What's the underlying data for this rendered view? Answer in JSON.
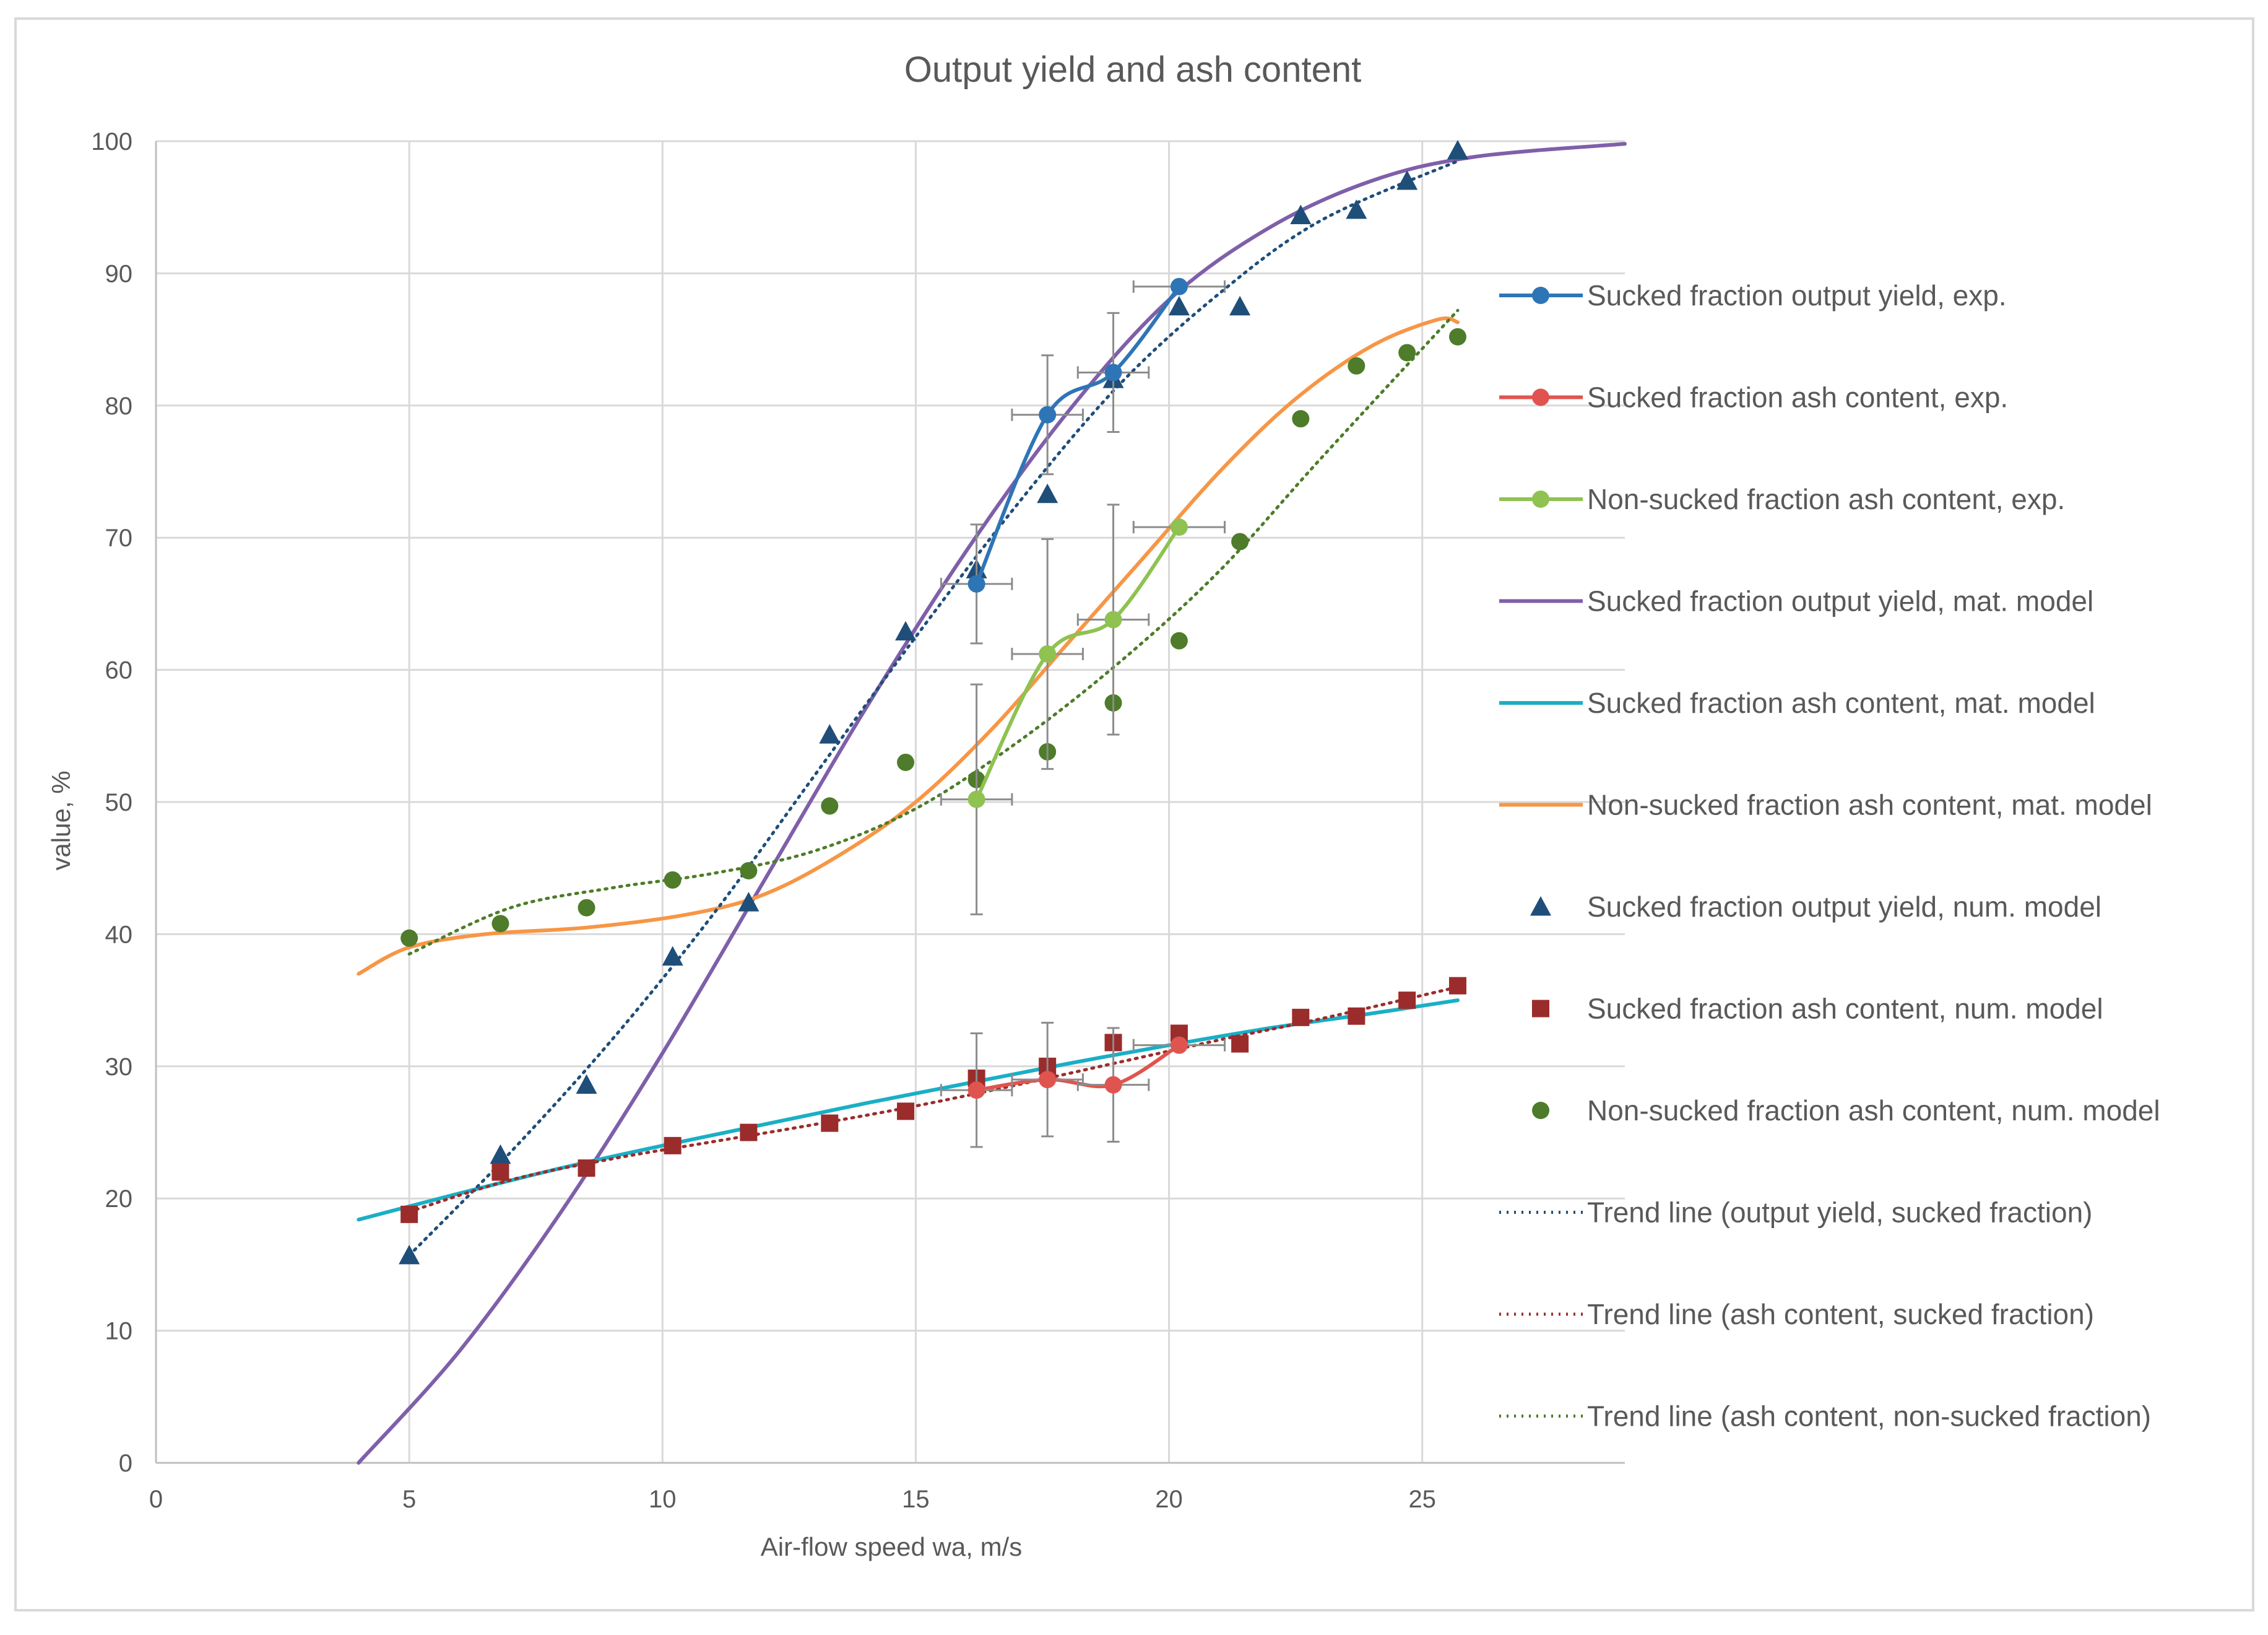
{
  "chart_data": {
    "type": "scatter",
    "title": "Output yield and ash content",
    "xlabel": "Air-flow speed wa, m/s",
    "ylabel": "value, %",
    "xlim": [
      0,
      29
    ],
    "ylim": [
      0,
      100
    ],
    "x_ticks": [
      0,
      5,
      10,
      15,
      20,
      25
    ],
    "y_ticks": [
      0,
      10,
      20,
      30,
      40,
      50,
      60,
      70,
      80,
      90,
      100
    ],
    "grid": true,
    "legend_position": "right",
    "series": [
      {
        "name": "Sucked fraction output yield, exp.",
        "style": "line-marker",
        "smooth": true,
        "marker": "circle",
        "color": "#2E75B6",
        "points": [
          [
            16.2,
            66.5
          ],
          [
            17.6,
            79.3
          ],
          [
            18.9,
            82.5
          ],
          [
            20.2,
            89.0
          ]
        ],
        "x_err": [
          0.7,
          0.7,
          0.7,
          0.9
        ],
        "y_err": [
          4.5,
          4.5,
          4.5,
          0.0
        ]
      },
      {
        "name": "Sucked fraction ash content, exp.",
        "style": "line-marker",
        "smooth": true,
        "marker": "circle",
        "color": "#E0544F",
        "points": [
          [
            16.2,
            28.2
          ],
          [
            17.6,
            29.0
          ],
          [
            18.9,
            28.6
          ],
          [
            20.2,
            31.6
          ]
        ],
        "x_err": [
          0.7,
          0.7,
          0.7,
          0.9
        ],
        "y_err": [
          4.3,
          4.3,
          4.3,
          0.0
        ]
      },
      {
        "name": "Non-sucked fraction ash content, exp.",
        "style": "line-marker",
        "smooth": true,
        "marker": "circle",
        "color": "#8FC251",
        "points": [
          [
            16.2,
            50.2
          ],
          [
            17.6,
            61.2
          ],
          [
            18.9,
            63.8
          ],
          [
            20.2,
            70.8
          ]
        ],
        "x_err": [
          0.7,
          0.7,
          0.7,
          0.9
        ],
        "y_err": [
          8.7,
          8.7,
          8.7,
          0.0
        ]
      },
      {
        "name": "Sucked fraction output yield, mat. model",
        "style": "line",
        "smooth": true,
        "color": "#7F5FA9",
        "points": [
          [
            4.0,
            0.0
          ],
          [
            6.0,
            8.5
          ],
          [
            8.0,
            19.0
          ],
          [
            10.0,
            31.0
          ],
          [
            12.0,
            44.0
          ],
          [
            14.0,
            57.0
          ],
          [
            16.0,
            69.0
          ],
          [
            18.0,
            79.5
          ],
          [
            20.0,
            88.0
          ],
          [
            22.0,
            93.5
          ],
          [
            24.0,
            97.0
          ],
          [
            26.0,
            98.8
          ],
          [
            29.0,
            99.8
          ]
        ]
      },
      {
        "name": "Sucked fraction ash content, mat. model",
        "style": "line",
        "smooth": true,
        "color": "#1AAFC5",
        "points": [
          [
            4.0,
            18.4
          ],
          [
            6.0,
            20.4
          ],
          [
            8.0,
            22.3
          ],
          [
            10.0,
            24.0
          ],
          [
            12.0,
            25.6
          ],
          [
            14.0,
            27.2
          ],
          [
            16.0,
            28.7
          ],
          [
            18.0,
            30.2
          ],
          [
            20.0,
            31.6
          ],
          [
            22.0,
            32.9
          ],
          [
            24.0,
            34.0
          ],
          [
            25.7,
            35.0
          ]
        ]
      },
      {
        "name": "Non-sucked fraction ash content, mat. model",
        "style": "line",
        "smooth": true,
        "color": "#F79646",
        "points": [
          [
            4.0,
            37.0
          ],
          [
            5.0,
            39.0
          ],
          [
            6.5,
            40.0
          ],
          [
            8.5,
            40.5
          ],
          [
            10.5,
            41.5
          ],
          [
            12.0,
            43.0
          ],
          [
            13.5,
            46.0
          ],
          [
            15.0,
            50.0
          ],
          [
            16.5,
            55.5
          ],
          [
            18.0,
            62.0
          ],
          [
            19.5,
            68.5
          ],
          [
            21.0,
            75.0
          ],
          [
            22.5,
            80.5
          ],
          [
            24.0,
            84.5
          ],
          [
            25.3,
            86.5
          ],
          [
            25.7,
            86.3
          ]
        ]
      },
      {
        "name": "Sucked fraction output yield, num. model",
        "style": "marker",
        "marker": "triangle",
        "color": "#1F4E79",
        "points": [
          [
            5.0,
            15.7
          ],
          [
            6.8,
            23.3
          ],
          [
            8.5,
            28.6
          ],
          [
            10.2,
            38.3
          ],
          [
            11.7,
            42.4
          ],
          [
            13.3,
            55.1
          ],
          [
            14.8,
            62.9
          ],
          [
            16.2,
            67.6
          ],
          [
            17.6,
            73.3
          ],
          [
            18.9,
            82.0
          ],
          [
            20.2,
            87.5
          ],
          [
            21.4,
            87.5
          ],
          [
            22.6,
            94.4
          ],
          [
            23.7,
            94.8
          ],
          [
            24.7,
            97.0
          ],
          [
            25.7,
            99.3
          ]
        ]
      },
      {
        "name": "Sucked fraction ash content, num. model",
        "style": "marker",
        "marker": "square",
        "color": "#9B2C2C",
        "points": [
          [
            5.0,
            18.8
          ],
          [
            6.8,
            22.0
          ],
          [
            8.5,
            22.3
          ],
          [
            10.2,
            24.0
          ],
          [
            11.7,
            25.0
          ],
          [
            13.3,
            25.7
          ],
          [
            14.8,
            26.6
          ],
          [
            16.2,
            29.1
          ],
          [
            17.6,
            30.0
          ],
          [
            18.9,
            31.8
          ],
          [
            20.2,
            32.5
          ],
          [
            21.4,
            31.7
          ],
          [
            22.6,
            33.7
          ],
          [
            23.7,
            33.8
          ],
          [
            24.7,
            35.0
          ],
          [
            25.7,
            36.1
          ]
        ]
      },
      {
        "name": "Non-sucked fraction ash content, num. model",
        "style": "marker",
        "marker": "circle",
        "color": "#4E7C2A",
        "points": [
          [
            5.0,
            39.7
          ],
          [
            6.8,
            40.8
          ],
          [
            8.5,
            42.0
          ],
          [
            10.2,
            44.1
          ],
          [
            11.7,
            44.8
          ],
          [
            13.3,
            49.7
          ],
          [
            14.8,
            53.0
          ],
          [
            16.2,
            51.7
          ],
          [
            17.6,
            53.8
          ],
          [
            18.9,
            57.5
          ],
          [
            20.2,
            62.2
          ],
          [
            21.4,
            69.7
          ],
          [
            22.6,
            79.0
          ],
          [
            23.7,
            83.0
          ],
          [
            24.7,
            84.0
          ],
          [
            25.7,
            85.2
          ]
        ]
      },
      {
        "name": "Trend line (output yield, sucked fraction)",
        "style": "dotted",
        "smooth": true,
        "color": "#1F4E79",
        "points": [
          [
            5.0,
            15.7
          ],
          [
            7.0,
            23.5
          ],
          [
            9.0,
            32.0
          ],
          [
            11.0,
            41.5
          ],
          [
            13.0,
            52.0
          ],
          [
            15.0,
            62.5
          ],
          [
            17.0,
            72.5
          ],
          [
            19.0,
            81.5
          ],
          [
            21.0,
            88.5
          ],
          [
            23.0,
            94.0
          ],
          [
            25.7,
            98.5
          ]
        ]
      },
      {
        "name": "Trend line (ash content, sucked fraction)",
        "style": "dotted",
        "smooth": true,
        "color": "#9B2C2C",
        "points": [
          [
            5.0,
            19.0
          ],
          [
            7.0,
            21.4
          ],
          [
            9.0,
            23.0
          ],
          [
            11.0,
            24.3
          ],
          [
            13.0,
            25.6
          ],
          [
            15.0,
            27.0
          ],
          [
            17.0,
            28.6
          ],
          [
            19.0,
            30.3
          ],
          [
            21.0,
            32.0
          ],
          [
            23.0,
            33.6
          ],
          [
            25.7,
            36.0
          ]
        ]
      },
      {
        "name": "Trend line (ash content, non-sucked fraction)",
        "style": "dotted",
        "smooth": true,
        "color": "#4E7C2A",
        "points": [
          [
            5.0,
            38.5
          ],
          [
            7.0,
            42.0
          ],
          [
            9.0,
            43.5
          ],
          [
            11.0,
            44.6
          ],
          [
            13.0,
            46.3
          ],
          [
            15.0,
            49.5
          ],
          [
            17.0,
            54.5
          ],
          [
            19.0,
            60.5
          ],
          [
            21.0,
            67.5
          ],
          [
            23.0,
            76.0
          ],
          [
            25.7,
            87.2
          ]
        ]
      }
    ]
  }
}
